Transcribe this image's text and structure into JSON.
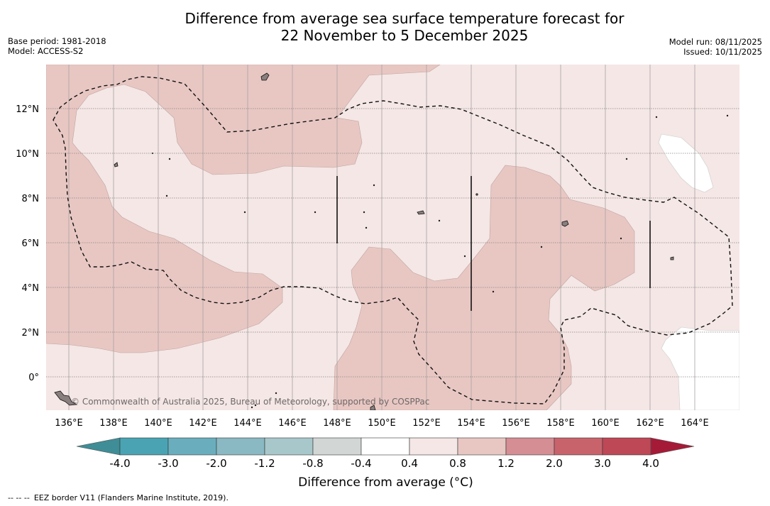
{
  "header": {
    "title_line1": "Difference from average sea surface temperature forecast for",
    "title_line2": "22 November to 5 December 2025",
    "base_period": "Base period: 1981-2018",
    "model": "Model: ACCESS-S2",
    "model_run": "Model run: 08/11/2025",
    "issued": "Issued: 10/11/2025"
  },
  "map": {
    "lon_labels": [
      "136°E",
      "138°E",
      "140°E",
      "142°E",
      "144°E",
      "146°E",
      "148°E",
      "150°E",
      "152°E",
      "154°E",
      "156°E",
      "158°E",
      "160°E",
      "162°E",
      "164°E"
    ],
    "lat_labels": [
      "12°N",
      "10°N",
      "8°N",
      "6°N",
      "4°N",
      "2°N",
      "0°"
    ],
    "attribution": "© Commonwealth of Australia 2025, Bureau of Meteorology, supported by COSPPac",
    "colors": {
      "band_0_4_to_0_8": "#f4e7e5",
      "band_0_8_to_1_2": "#e8c7c3",
      "band_m0_4_to_0_4": "#ffffff",
      "eez_line": "#111111",
      "land": "#8a7f7f"
    }
  },
  "colorbar": {
    "tick_labels": [
      "-4.0",
      "-3.0",
      "-2.0",
      "-1.2",
      "-0.8",
      "-0.4",
      "0.4",
      "0.8",
      "1.2",
      "2.0",
      "3.0",
      "4.0"
    ],
    "colors": [
      "#3f8d96",
      "#4aa3b3",
      "#6aaebd",
      "#8ab8c3",
      "#a8c7cb",
      "#d2d6d5",
      "#ffffff",
      "#f4e7e5",
      "#e8c7c3",
      "#d48e94",
      "#c8636c",
      "#be4856",
      "#a51b37"
    ],
    "legend_title": "Difference from average (°C)"
  },
  "footnote": {
    "dashes": "-- -- --",
    "text": "EEZ border V11 (Flanders Marine Institute, 2019)."
  }
}
